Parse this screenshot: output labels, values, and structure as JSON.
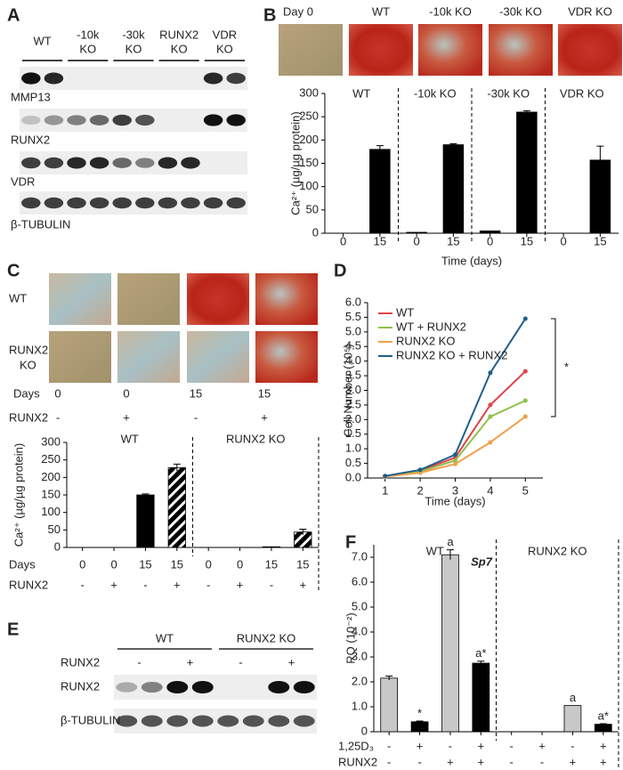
{
  "panel_labels": [
    "A",
    "B",
    "C",
    "D",
    "E",
    "F"
  ],
  "blot_a": {
    "lanes_header": [
      [
        "WT"
      ],
      [
        "-10k",
        "KO"
      ],
      [
        "-30k",
        "KO"
      ],
      [
        "RUNX2",
        "KO"
      ],
      [
        "VDR",
        "KO"
      ]
    ],
    "rows": [
      "MMP13",
      "RUNX2",
      "VDR",
      "β-TUBULIN"
    ]
  },
  "images_b": {
    "labels": [
      "Day 0",
      "WT",
      "-10k KO",
      "-30k KO",
      "VDR KO"
    ]
  },
  "images_c": {
    "row_labels": [
      [
        "WT"
      ],
      [
        "RUNX2",
        "KO"
      ]
    ],
    "days_label": "Days",
    "days": [
      "0",
      "0",
      "15",
      "15"
    ],
    "runx2_label": "RUNX2",
    "runx2": [
      "-",
      "+",
      "-",
      "+"
    ]
  },
  "blot_e": {
    "groups": [
      "WT",
      "RUNX2 KO"
    ],
    "treatment_label": "RUNX2",
    "treatment": [
      "-",
      "+",
      "-",
      "+"
    ],
    "rows": [
      "RUNX2",
      "β-TUBULIN"
    ]
  },
  "chart_data": [
    {
      "type": "bar",
      "groups": [
        "WT",
        "-10k KO",
        "-30k KO",
        "VDR KO"
      ],
      "categories": [
        "0",
        "15",
        "0",
        "15",
        "0",
        "15",
        "0",
        "15"
      ],
      "values": [
        0,
        180,
        2,
        190,
        5,
        260,
        0,
        157
      ],
      "errors": [
        null,
        8,
        null,
        2,
        null,
        3,
        null,
        30
      ],
      "color": "#000000",
      "xlabel": "Time (days)",
      "ylabel": "Ca²⁺ (µg/µg protein)",
      "ylim": [
        0,
        300
      ],
      "yticks": [
        0,
        50,
        100,
        150,
        200,
        250,
        300
      ]
    },
    {
      "type": "bar",
      "groups": [
        "WT",
        "RUNX2 KO"
      ],
      "category_label": "Days",
      "categories": [
        "0",
        "0",
        "15",
        "15",
        "0",
        "0",
        "15",
        "15"
      ],
      "extra_row": {
        "label": "RUNX2",
        "values": [
          "-",
          "+",
          "-",
          "+",
          "-",
          "+",
          "-",
          "+"
        ]
      },
      "values": [
        0,
        0,
        150,
        228,
        0,
        0,
        2,
        44
      ],
      "errors": [
        null,
        null,
        3,
        10,
        null,
        null,
        null,
        8
      ],
      "patterns": [
        "solid",
        "hatch",
        "solid",
        "hatch",
        "solid",
        "hatch",
        "solid",
        "hatch"
      ],
      "color": "#000000",
      "ylabel": "Ca²⁺ (µg/µg protein)",
      "ylim": [
        0,
        300
      ],
      "yticks": [
        0,
        50,
        100,
        150,
        200,
        250,
        300
      ]
    },
    {
      "type": "line",
      "x": [
        1,
        2,
        3,
        4,
        5
      ],
      "xlim": [
        0.5,
        5.5
      ],
      "xticks": [
        1,
        2,
        3,
        4,
        5
      ],
      "ylim": [
        0,
        6
      ],
      "yticks": [
        {
          "value": 0,
          "label": "0.0"
        },
        {
          "value": 0.5,
          "label": "0.5"
        },
        {
          "value": 1,
          "label": "1.0"
        },
        {
          "value": 1.5,
          "label": "1.5"
        },
        {
          "value": 2,
          "label": "2.0"
        },
        {
          "value": 2.5,
          "label": "2.5"
        },
        {
          "value": 3,
          "label": "3.0"
        },
        {
          "value": 3.5,
          "label": "3.5"
        },
        {
          "value": 4,
          "label": "4.0"
        },
        {
          "value": 4.5,
          "label": "4.5"
        },
        {
          "value": 5,
          "label": "5.0"
        },
        {
          "value": 5.5,
          "label": "5.5"
        },
        {
          "value": 6,
          "label": "6.0"
        }
      ],
      "xlabel": "Time (days)",
      "ylabel": "Cell Number (10⁵)",
      "legend": "upper left",
      "annotation": "*",
      "series": [
        {
          "name": "WT",
          "color": "#e0434a",
          "values": [
            0.05,
            0.25,
            0.7,
            2.5,
            3.65
          ]
        },
        {
          "name": "WT + RUNX2",
          "color": "#8dc04b",
          "values": [
            0.05,
            0.22,
            0.6,
            2.1,
            2.65
          ]
        },
        {
          "name": "RUNX2 KO",
          "color": "#f0a04b",
          "values": [
            0.05,
            0.18,
            0.48,
            1.22,
            2.1
          ]
        },
        {
          "name": "RUNX2 KO + RUNX2",
          "color": "#1f5f8b",
          "values": [
            0.07,
            0.28,
            0.8,
            3.6,
            5.45
          ]
        }
      ]
    },
    {
      "type": "bar",
      "title": "Sp7",
      "groups": [
        "WT",
        "RUNX2 KO"
      ],
      "category_label": "1,25D₃",
      "categories": [
        "-",
        "+",
        "-",
        "+",
        "-",
        "+",
        "-",
        "+"
      ],
      "extra_row": {
        "label": "RUNX2",
        "values": [
          "-",
          "-",
          "+",
          "+",
          "-",
          "-",
          "+",
          "+"
        ]
      },
      "values": [
        2.15,
        0.4,
        7.1,
        2.75,
        0,
        0,
        1.05,
        0.3
      ],
      "errors": [
        0.08,
        0.03,
        0.2,
        0.08,
        null,
        null,
        null,
        0.02
      ],
      "bar_notes": [
        null,
        "*",
        "a",
        "a*",
        null,
        null,
        "a",
        "a*"
      ],
      "colors": [
        "#c8c8c8",
        "#000000",
        "#c8c8c8",
        "#000000",
        "#c8c8c8",
        "#000000",
        "#c8c8c8",
        "#000000"
      ],
      "ylabel": "RQ (10⁻²)",
      "ylim": [
        0,
        7.5
      ],
      "yticks": [
        0,
        {
          "value": 1,
          "label": "1.0"
        },
        {
          "value": 2,
          "label": "2.0"
        },
        {
          "value": 3,
          "label": "3.0"
        },
        {
          "value": 4,
          "label": "4.0"
        },
        {
          "value": 5,
          "label": "5.0"
        },
        {
          "value": 6,
          "label": "6.0"
        },
        {
          "value": 7,
          "label": "7.0"
        }
      ]
    }
  ]
}
